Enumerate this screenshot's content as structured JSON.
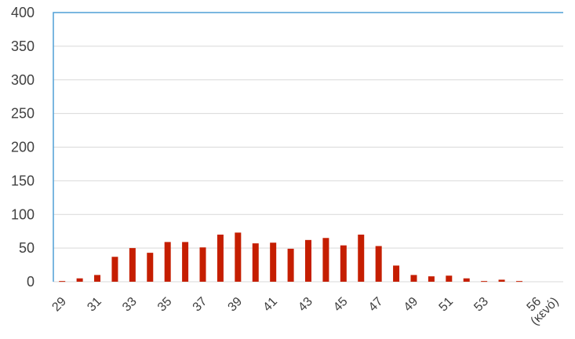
{
  "chart_data": {
    "type": "bar",
    "title": "",
    "xlabel": "",
    "ylabel": "",
    "ylim": [
      0,
      400
    ],
    "yticks": [
      0,
      50,
      100,
      150,
      200,
      250,
      300,
      350,
      400
    ],
    "grid": true,
    "legend": "none",
    "bar_color": "#c51e00",
    "frame_color": "#4f9fd6",
    "categories": [
      "29",
      "30",
      "31",
      "32",
      "33",
      "34",
      "35",
      "36",
      "37",
      "38",
      "39",
      "40",
      "41",
      "42",
      "43",
      "44",
      "45",
      "46",
      "47",
      "48",
      "49",
      "50",
      "51",
      "52",
      "53",
      "54",
      "55",
      "56",
      "(κενό)"
    ],
    "xtick_labels": [
      "29",
      "31",
      "33",
      "35",
      "37",
      "39",
      "41",
      "43",
      "45",
      "47",
      "49",
      "51",
      "53",
      "56",
      "(κενό)"
    ],
    "values": [
      1,
      5,
      10,
      37,
      50,
      43,
      59,
      59,
      51,
      70,
      73,
      57,
      58,
      49,
      62,
      65,
      54,
      70,
      53,
      24,
      10,
      8,
      9,
      5,
      1,
      3,
      1,
      0,
      0
    ]
  }
}
